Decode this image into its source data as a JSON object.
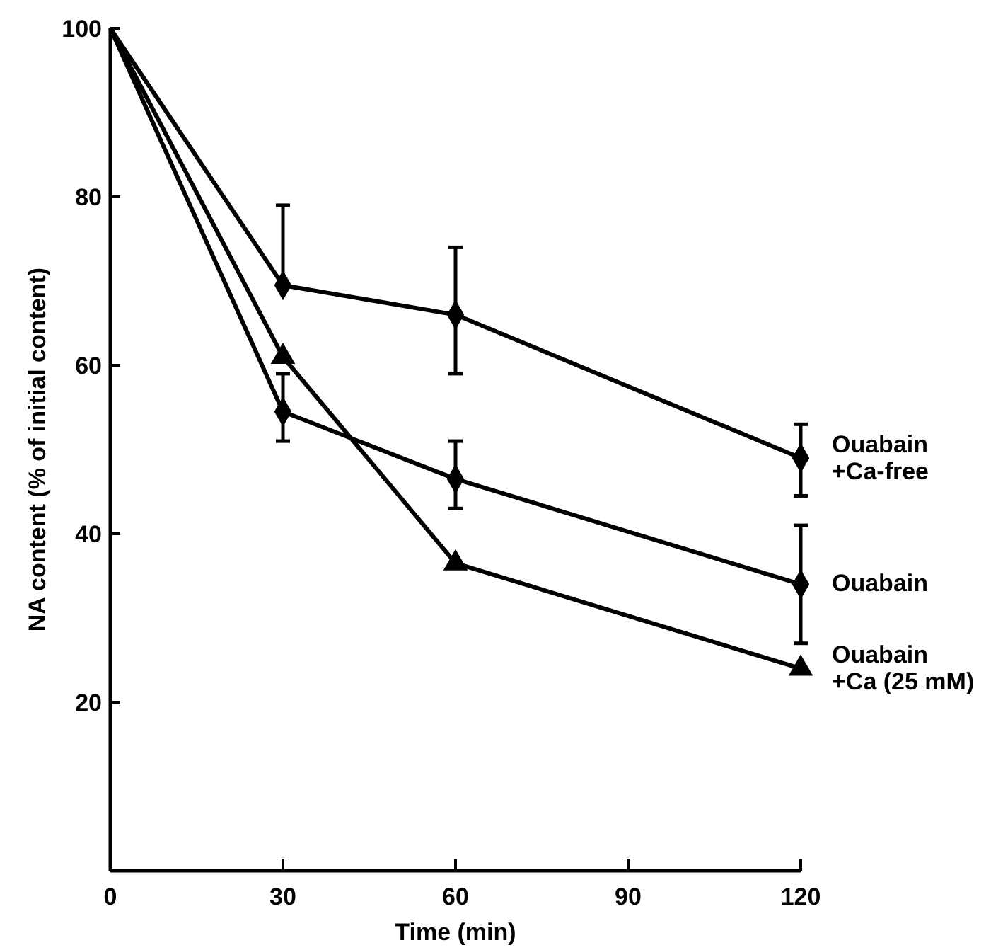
{
  "chart_data": {
    "type": "line",
    "xlabel": "Time (min)",
    "ylabel": "NA content (% of initial content)",
    "x": [
      0,
      30,
      60,
      120
    ],
    "xlim": [
      0,
      120
    ],
    "xticks": [
      0,
      30,
      60,
      90,
      120
    ],
    "ylim": [
      0,
      100
    ],
    "yticks": [
      20,
      40,
      60,
      80,
      100
    ],
    "grid": false,
    "line_style": "solid",
    "series": [
      {
        "name": "Ouabain +Ca-free",
        "color": "#000000",
        "marker": "diamond",
        "values": [
          100,
          69.5,
          66,
          49
        ],
        "errors": [
          null,
          [
            69.5,
            79
          ],
          [
            59,
            74
          ],
          [
            44.5,
            53
          ]
        ]
      },
      {
        "name": "Ouabain",
        "color": "#000000",
        "marker": "diamond",
        "values": [
          100,
          54.5,
          46.5,
          34
        ],
        "errors": [
          null,
          [
            51,
            59
          ],
          [
            43,
            51
          ],
          [
            27,
            41
          ]
        ]
      },
      {
        "name": "Ouabain +Ca (25 mM)",
        "color": "#000000",
        "marker": "triangle",
        "values": [
          100,
          61,
          36.5,
          24
        ]
      }
    ]
  }
}
